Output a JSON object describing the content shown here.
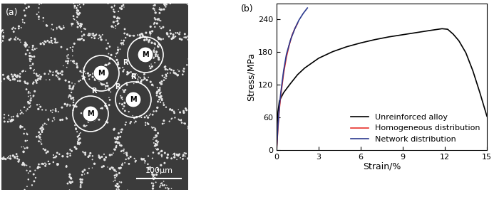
{
  "image_panel": {
    "label": "(a)",
    "region_labels": [
      "M",
      "M",
      "M",
      "M"
    ],
    "boundary_labels": [
      "R",
      "R",
      "R",
      "R"
    ],
    "scale_bar": "100μm"
  },
  "chart_data": {
    "type": "line",
    "panel_label": "(b)",
    "x_label": "Strain/%",
    "y_label": "Stress/MPa",
    "xlim": [
      0,
      15
    ],
    "xticks": [
      0,
      3,
      6,
      9,
      12,
      15
    ],
    "ylim": [
      0,
      268
    ],
    "yticks": [
      0,
      60,
      120,
      180,
      240
    ],
    "legend": "lower right",
    "grid": false,
    "series": [
      {
        "name": "Unreinforced alloy",
        "color": "#000000",
        "x": [
          0,
          0.05,
          0.1,
          0.2,
          0.5,
          1,
          1.5,
          2,
          3,
          4,
          5,
          6,
          7,
          8,
          9,
          10,
          11,
          11.8,
          12.2,
          12.6,
          13,
          13.5,
          14,
          14.5,
          15
        ],
        "values": [
          0,
          40,
          70,
          90,
          105,
          122,
          138,
          150,
          168,
          180,
          189,
          196,
          202,
          207,
          211,
          215,
          219,
          222,
          221,
          212,
          200,
          178,
          145,
          105,
          62
        ]
      },
      {
        "name": "Homogeneous distribution",
        "color": "#e8302a",
        "x": [
          0,
          0.1,
          0.2,
          0.3,
          0.5,
          0.7,
          0.9,
          1.1,
          1.3,
          1.5
        ],
        "values": [
          0,
          40,
          75,
          100,
          140,
          170,
          192,
          210,
          222,
          232
        ]
      },
      {
        "name": "Network distribution",
        "color": "#2b3a8f",
        "x": [
          0,
          0.1,
          0.2,
          0.3,
          0.5,
          0.7,
          1.0,
          1.3,
          1.6,
          1.9,
          2.2
        ],
        "values": [
          0,
          45,
          80,
          105,
          145,
          175,
          202,
          222,
          238,
          250,
          260
        ]
      }
    ]
  }
}
